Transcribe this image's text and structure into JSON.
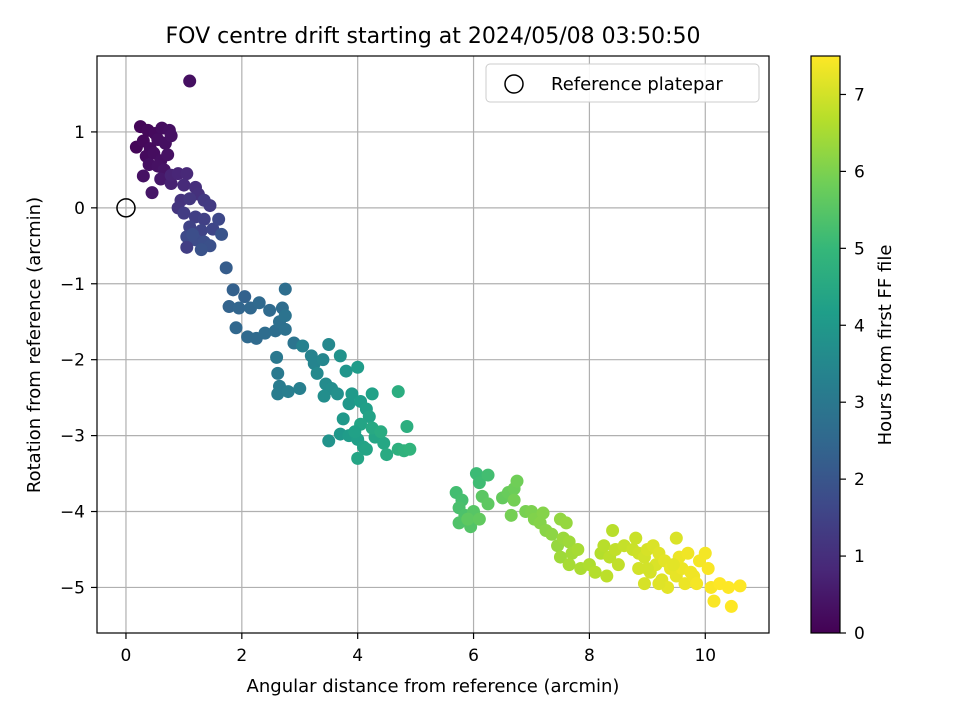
{
  "chart_data": {
    "type": "scatter",
    "title": "FOV centre drift starting at 2024/05/08 03:50:50",
    "xlabel": "Angular distance from reference (arcmin)",
    "ylabel": "Rotation from reference (arcmin)",
    "xlim": [
      -0.5,
      11.1
    ],
    "ylim": [
      -5.6,
      2.0
    ],
    "xticks": [
      0,
      2,
      4,
      6,
      8,
      10
    ],
    "yticks": [
      -5,
      -4,
      -3,
      -2,
      -1,
      0,
      1
    ],
    "grid": true,
    "legend": {
      "placement": "top-right",
      "entries": [
        "Reference platepar"
      ]
    },
    "reference_point": {
      "x": 0.0,
      "y": 0.0
    },
    "colorbar": {
      "label": "Hours from first FF file",
      "range": [
        0,
        7.5
      ],
      "ticks": [
        0,
        1,
        2,
        3,
        4,
        5,
        6,
        7
      ],
      "colormap": "viridis",
      "colors": [
        "#440154",
        "#482878",
        "#3e4989",
        "#31688e",
        "#26828e",
        "#1f9e89",
        "#35b779",
        "#6ece58",
        "#b5de2b",
        "#fde725"
      ]
    },
    "series": [
      {
        "points": [
          [
            1.1,
            1.67,
            0.3
          ],
          [
            0.25,
            1.07,
            0.1
          ],
          [
            0.38,
            1.02,
            0.15
          ],
          [
            0.5,
            0.98,
            0.2
          ],
          [
            0.62,
            1.05,
            0.25
          ],
          [
            0.75,
            1.02,
            0.3
          ],
          [
            0.18,
            0.8,
            0.1
          ],
          [
            0.3,
            0.88,
            0.15
          ],
          [
            0.42,
            0.78,
            0.2
          ],
          [
            0.55,
            0.9,
            0.25
          ],
          [
            0.68,
            0.85,
            0.3
          ],
          [
            0.78,
            0.95,
            0.35
          ],
          [
            0.35,
            0.68,
            0.2
          ],
          [
            0.48,
            0.72,
            0.25
          ],
          [
            0.6,
            0.62,
            0.3
          ],
          [
            0.72,
            0.7,
            0.35
          ],
          [
            0.4,
            0.57,
            0.3
          ],
          [
            0.55,
            0.55,
            0.35
          ],
          [
            0.66,
            0.5,
            0.4
          ],
          [
            0.3,
            0.42,
            0.35
          ],
          [
            0.45,
            0.2,
            0.45
          ],
          [
            0.6,
            0.38,
            0.5
          ],
          [
            0.78,
            0.32,
            0.7
          ],
          [
            0.78,
            0.43,
            0.75
          ],
          [
            0.9,
            0.45,
            0.8
          ],
          [
            1.05,
            0.45,
            0.85
          ],
          [
            1.0,
            0.3,
            0.9
          ],
          [
            1.2,
            0.27,
            1.0
          ],
          [
            1.25,
            0.18,
            1.05
          ],
          [
            0.95,
            0.1,
            1.1
          ],
          [
            0.9,
            0.0,
            1.15
          ],
          [
            1.1,
            0.12,
            1.2
          ],
          [
            1.35,
            0.1,
            1.25
          ],
          [
            1.45,
            0.03,
            1.3
          ],
          [
            1.0,
            -0.07,
            1.35
          ],
          [
            1.2,
            -0.12,
            1.4
          ],
          [
            1.35,
            -0.15,
            1.45
          ],
          [
            1.1,
            -0.25,
            1.5
          ],
          [
            1.3,
            -0.3,
            1.55
          ],
          [
            1.5,
            -0.28,
            1.6
          ],
          [
            1.6,
            -0.15,
            1.65
          ],
          [
            1.05,
            -0.38,
            1.7
          ],
          [
            1.2,
            -0.42,
            1.75
          ],
          [
            1.35,
            -0.45,
            1.8
          ],
          [
            1.45,
            -0.5,
            1.85
          ],
          [
            1.05,
            -0.52,
            1.4
          ],
          [
            1.3,
            -0.55,
            1.9
          ],
          [
            1.65,
            -0.35,
            1.95
          ],
          [
            1.15,
            -0.35,
            1.8
          ],
          [
            1.73,
            -0.79,
            2.2
          ],
          [
            1.85,
            -1.08,
            2.3
          ],
          [
            2.05,
            -1.17,
            2.35
          ],
          [
            1.78,
            -1.3,
            2.4
          ],
          [
            1.95,
            -1.32,
            2.45
          ],
          [
            2.15,
            -1.32,
            2.5
          ],
          [
            2.3,
            -1.25,
            2.55
          ],
          [
            2.48,
            -1.35,
            2.6
          ],
          [
            2.7,
            -1.32,
            2.65
          ],
          [
            2.75,
            -1.07,
            2.7
          ],
          [
            1.9,
            -1.58,
            2.5
          ],
          [
            2.1,
            -1.7,
            2.55
          ],
          [
            2.25,
            -1.72,
            2.6
          ],
          [
            2.4,
            -1.65,
            2.65
          ],
          [
            2.58,
            -1.62,
            2.7
          ],
          [
            2.65,
            -1.5,
            2.75
          ],
          [
            2.75,
            -1.6,
            2.8
          ],
          [
            2.75,
            -1.42,
            2.85
          ],
          [
            2.9,
            -1.78,
            2.9
          ],
          [
            2.6,
            -1.97,
            3.0
          ],
          [
            2.62,
            -2.18,
            3.05
          ],
          [
            2.65,
            -2.35,
            3.1
          ],
          [
            2.62,
            -2.45,
            3.15
          ],
          [
            2.8,
            -2.42,
            3.2
          ],
          [
            3.0,
            -2.38,
            3.25
          ],
          [
            3.05,
            -1.82,
            3.3
          ],
          [
            3.2,
            -1.95,
            3.35
          ],
          [
            3.25,
            -2.05,
            3.4
          ],
          [
            3.4,
            -2.0,
            3.45
          ],
          [
            3.5,
            -1.8,
            3.5
          ],
          [
            3.3,
            -2.18,
            3.55
          ],
          [
            3.45,
            -2.32,
            3.6
          ],
          [
            3.55,
            -2.38,
            3.65
          ],
          [
            3.42,
            -2.48,
            3.7
          ],
          [
            3.65,
            -2.45,
            3.75
          ],
          [
            3.7,
            -1.95,
            3.8
          ],
          [
            3.5,
            -3.07,
            3.85
          ],
          [
            3.8,
            -2.15,
            3.9
          ],
          [
            3.85,
            -2.58,
            3.95
          ],
          [
            3.75,
            -2.78,
            4.0
          ],
          [
            3.9,
            -2.45,
            4.05
          ],
          [
            4.0,
            -2.1,
            4.1
          ],
          [
            4.05,
            -2.55,
            4.15
          ],
          [
            4.15,
            -2.65,
            4.2
          ],
          [
            4.25,
            -2.45,
            4.25
          ],
          [
            4.2,
            -2.75,
            4.3
          ],
          [
            4.05,
            -2.85,
            4.35
          ],
          [
            3.7,
            -2.98,
            4.0
          ],
          [
            3.85,
            -3.0,
            4.1
          ],
          [
            4.0,
            -3.05,
            4.2
          ],
          [
            4.1,
            -3.15,
            4.3
          ],
          [
            4.0,
            -3.3,
            4.4
          ],
          [
            4.3,
            -3.02,
            4.4
          ],
          [
            4.45,
            -3.1,
            4.45
          ],
          [
            4.25,
            -2.9,
            4.5
          ],
          [
            4.5,
            -3.25,
            4.55
          ],
          [
            4.4,
            -2.95,
            4.6
          ],
          [
            4.7,
            -2.42,
            4.65
          ],
          [
            4.85,
            -2.88,
            4.7
          ],
          [
            4.7,
            -3.18,
            4.75
          ],
          [
            4.8,
            -3.2,
            4.8
          ],
          [
            4.9,
            -3.18,
            4.85
          ],
          [
            4.15,
            -3.18,
            4.35
          ],
          [
            3.95,
            -2.95,
            4.25
          ],
          [
            6.05,
            -3.5,
            5.1
          ],
          [
            6.1,
            -3.62,
            5.15
          ],
          [
            6.25,
            -3.52,
            5.2
          ],
          [
            5.7,
            -3.75,
            5.2
          ],
          [
            5.8,
            -3.85,
            5.25
          ],
          [
            5.75,
            -3.95,
            5.3
          ],
          [
            5.85,
            -4.05,
            5.35
          ],
          [
            5.75,
            -4.15,
            5.4
          ],
          [
            5.95,
            -4.2,
            5.45
          ],
          [
            6.0,
            -4.0,
            5.5
          ],
          [
            6.15,
            -3.8,
            5.55
          ],
          [
            6.25,
            -3.9,
            5.6
          ],
          [
            5.9,
            -4.1,
            5.6
          ],
          [
            6.1,
            -4.1,
            5.65
          ],
          [
            6.5,
            -3.82,
            5.7
          ],
          [
            6.6,
            -3.75,
            5.75
          ],
          [
            6.7,
            -3.7,
            5.8
          ],
          [
            6.75,
            -3.6,
            5.85
          ],
          [
            6.65,
            -4.05,
            5.9
          ],
          [
            6.7,
            -3.85,
            5.9
          ],
          [
            6.9,
            -4.0,
            5.95
          ],
          [
            7.0,
            -4.0,
            6.0
          ],
          [
            7.05,
            -4.1,
            6.05
          ],
          [
            7.15,
            -4.15,
            6.1
          ],
          [
            7.25,
            -4.25,
            6.15
          ],
          [
            7.2,
            -4.02,
            6.1
          ],
          [
            7.35,
            -4.3,
            6.2
          ],
          [
            7.5,
            -4.1,
            6.25
          ],
          [
            7.6,
            -4.15,
            6.3
          ],
          [
            7.45,
            -4.45,
            6.3
          ],
          [
            7.55,
            -4.35,
            6.35
          ],
          [
            7.65,
            -4.4,
            6.4
          ],
          [
            7.5,
            -4.6,
            6.4
          ],
          [
            7.7,
            -4.55,
            6.45
          ],
          [
            7.8,
            -4.5,
            6.5
          ],
          [
            7.65,
            -4.7,
            6.5
          ],
          [
            7.85,
            -4.75,
            6.55
          ],
          [
            8.0,
            -4.7,
            6.6
          ],
          [
            8.1,
            -4.8,
            6.65
          ],
          [
            8.2,
            -4.55,
            6.65
          ],
          [
            8.25,
            -4.45,
            6.7
          ],
          [
            8.35,
            -4.6,
            6.75
          ],
          [
            8.3,
            -4.85,
            6.75
          ],
          [
            8.4,
            -4.25,
            6.7
          ],
          [
            8.5,
            -4.7,
            6.8
          ],
          [
            8.45,
            -4.5,
            6.8
          ],
          [
            8.6,
            -4.45,
            6.85
          ],
          [
            8.75,
            -4.5,
            6.9
          ],
          [
            8.8,
            -4.35,
            6.9
          ],
          [
            8.85,
            -4.55,
            6.95
          ],
          [
            8.85,
            -4.75,
            7.0
          ],
          [
            8.95,
            -4.6,
            7.0
          ],
          [
            9.0,
            -4.5,
            7.05
          ],
          [
            9.05,
            -4.8,
            7.05
          ],
          [
            9.1,
            -4.45,
            7.1
          ],
          [
            9.15,
            -4.7,
            7.1
          ],
          [
            9.2,
            -4.55,
            7.15
          ],
          [
            9.25,
            -4.9,
            7.15
          ],
          [
            9.3,
            -4.65,
            7.2
          ],
          [
            9.35,
            -5.0,
            7.2
          ],
          [
            9.4,
            -4.75,
            7.25
          ],
          [
            9.5,
            -4.85,
            7.25
          ],
          [
            9.55,
            -4.6,
            7.3
          ],
          [
            9.6,
            -4.75,
            7.3
          ],
          [
            9.65,
            -4.95,
            7.3
          ],
          [
            9.7,
            -4.55,
            7.35
          ],
          [
            9.75,
            -4.8,
            7.35
          ],
          [
            9.8,
            -4.85,
            7.35
          ],
          [
            9.5,
            -4.35,
            7.1
          ],
          [
            9.9,
            -4.65,
            7.4
          ],
          [
            10.0,
            -4.55,
            7.4
          ],
          [
            10.05,
            -4.75,
            7.45
          ],
          [
            10.1,
            -5.0,
            7.45
          ],
          [
            10.15,
            -5.18,
            7.45
          ],
          [
            10.25,
            -4.95,
            7.5
          ],
          [
            10.4,
            -5.0,
            7.5
          ],
          [
            10.45,
            -5.25,
            7.5
          ],
          [
            10.6,
            -4.98,
            7.5
          ],
          [
            9.0,
            -4.75,
            7.0
          ],
          [
            9.2,
            -4.95,
            7.15
          ],
          [
            9.45,
            -4.7,
            7.2
          ],
          [
            8.95,
            -4.95,
            7.05
          ],
          [
            9.85,
            -4.95,
            7.4
          ]
        ]
      }
    ]
  }
}
